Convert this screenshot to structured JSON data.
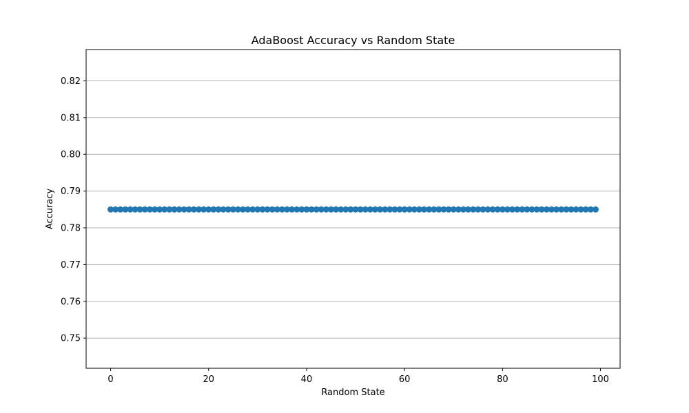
{
  "chart_data": {
    "type": "scatter",
    "title": "AdaBoost Accuracy vs Random State",
    "xlabel": "Random State",
    "ylabel": "Accuracy",
    "xlim": [
      -5,
      104
    ],
    "ylim": [
      0.7418,
      0.8285
    ],
    "xticks": [
      0,
      20,
      40,
      60,
      80,
      100
    ],
    "yticks": [
      0.75,
      0.76,
      0.77,
      0.78,
      0.79,
      0.8,
      0.81,
      0.82
    ],
    "ytick_labels": [
      "0.75",
      "0.76",
      "0.77",
      "0.78",
      "0.79",
      "0.80",
      "0.81",
      "0.82"
    ],
    "grid": "y-axis only",
    "legend": "none",
    "series": [
      {
        "marker": "circle",
        "color": "#1f77b4",
        "x": [
          0,
          1,
          2,
          3,
          4,
          5,
          6,
          7,
          8,
          9,
          10,
          11,
          12,
          13,
          14,
          15,
          16,
          17,
          18,
          19,
          20,
          21,
          22,
          23,
          24,
          25,
          26,
          27,
          28,
          29,
          30,
          31,
          32,
          33,
          34,
          35,
          36,
          37,
          38,
          39,
          40,
          41,
          42,
          43,
          44,
          45,
          46,
          47,
          48,
          49,
          50,
          51,
          52,
          53,
          54,
          55,
          56,
          57,
          58,
          59,
          60,
          61,
          62,
          63,
          64,
          65,
          66,
          67,
          68,
          69,
          70,
          71,
          72,
          73,
          74,
          75,
          76,
          77,
          78,
          79,
          80,
          81,
          82,
          83,
          84,
          85,
          86,
          87,
          88,
          89,
          90,
          91,
          92,
          93,
          94,
          95,
          96,
          97,
          98,
          99
        ],
        "y": [
          0.785,
          0.785,
          0.785,
          0.785,
          0.785,
          0.785,
          0.785,
          0.785,
          0.785,
          0.785,
          0.785,
          0.785,
          0.785,
          0.785,
          0.785,
          0.785,
          0.785,
          0.785,
          0.785,
          0.785,
          0.785,
          0.785,
          0.785,
          0.785,
          0.785,
          0.785,
          0.785,
          0.785,
          0.785,
          0.785,
          0.785,
          0.785,
          0.785,
          0.785,
          0.785,
          0.785,
          0.785,
          0.785,
          0.785,
          0.785,
          0.785,
          0.785,
          0.785,
          0.785,
          0.785,
          0.785,
          0.785,
          0.785,
          0.785,
          0.785,
          0.785,
          0.785,
          0.785,
          0.785,
          0.785,
          0.785,
          0.785,
          0.785,
          0.785,
          0.785,
          0.785,
          0.785,
          0.785,
          0.785,
          0.785,
          0.785,
          0.785,
          0.785,
          0.785,
          0.785,
          0.785,
          0.785,
          0.785,
          0.785,
          0.785,
          0.785,
          0.785,
          0.785,
          0.785,
          0.785,
          0.785,
          0.785,
          0.785,
          0.785,
          0.785,
          0.785,
          0.785,
          0.785,
          0.785,
          0.785,
          0.785,
          0.785,
          0.785,
          0.785,
          0.785,
          0.785,
          0.785,
          0.785,
          0.785,
          0.785
        ]
      }
    ]
  },
  "colors": {
    "grid": "#b0b0b0",
    "axis": "#000000",
    "background": "#ffffff"
  }
}
